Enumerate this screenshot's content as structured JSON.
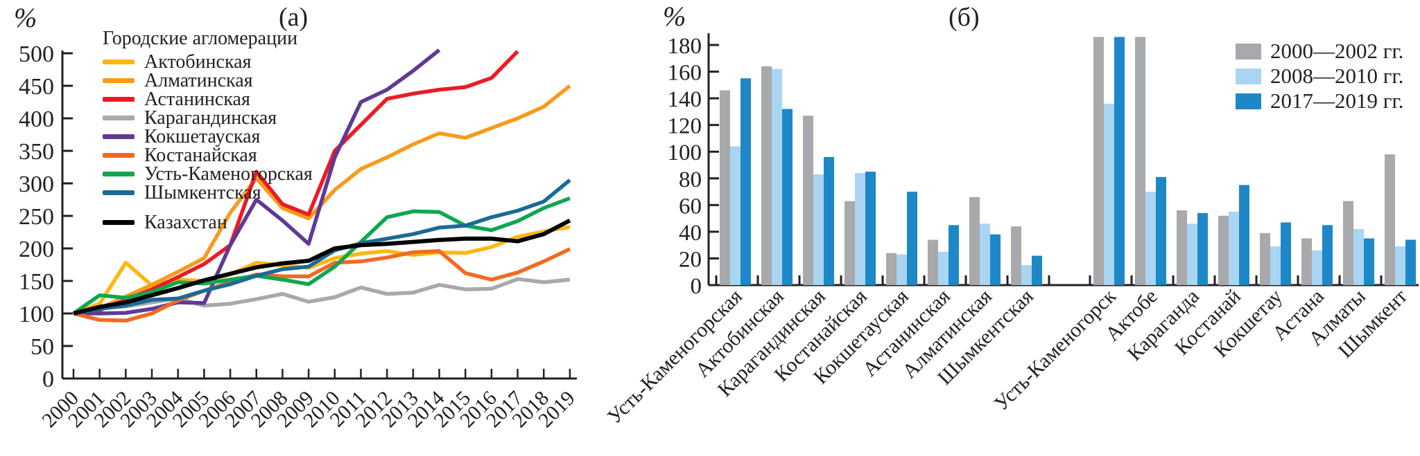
{
  "chart_data": [
    {
      "type": "line",
      "title": "(а)",
      "ylabel": "%",
      "legend_title": "Городские агломерации",
      "ylim": [
        0,
        500
      ],
      "ytick_step": 50,
      "grid": false,
      "legend_position": "top-left-inside",
      "x": [
        2000,
        2001,
        2002,
        2003,
        2004,
        2005,
        2006,
        2007,
        2008,
        2009,
        2010,
        2011,
        2012,
        2013,
        2014,
        2015,
        2016,
        2017,
        2018,
        2019
      ],
      "series": [
        {
          "key": "aktobinskaya",
          "name": "Актобинская",
          "color": "#FDB714",
          "values": [
            100,
            115,
            178,
            143,
            152,
            150,
            160,
            178,
            174,
            170,
            185,
            192,
            196,
            190,
            194,
            193,
            202,
            218,
            226,
            233
          ]
        },
        {
          "key": "almatinskaya",
          "name": "Алматинская",
          "color": "#F89B1B",
          "values": [
            100,
            108,
            126,
            144,
            164,
            185,
            255,
            308,
            262,
            246,
            290,
            322,
            340,
            360,
            377,
            370,
            385,
            400,
            418,
            450
          ]
        },
        {
          "key": "astaninskaya",
          "name": "Астанинская",
          "color": "#EC1B23",
          "values": [
            100,
            105,
            121,
            137,
            156,
            176,
            205,
            318,
            268,
            252,
            350,
            390,
            430,
            438,
            444,
            448,
            462,
            503,
            null,
            null
          ]
        },
        {
          "key": "karagandinskaya",
          "name": "Карагандинская",
          "color": "#A7A9AC",
          "values": [
            100,
            108,
            111,
            117,
            123,
            112,
            115,
            122,
            130,
            118,
            125,
            140,
            130,
            132,
            144,
            137,
            138,
            153,
            148,
            152
          ]
        },
        {
          "key": "kokshetauskaya",
          "name": "Кокшетауская",
          "color": "#5F3A95",
          "values": [
            100,
            100,
            101,
            107,
            117,
            116,
            205,
            275,
            243,
            207,
            340,
            425,
            444,
            473,
            505,
            null,
            null,
            null,
            null,
            null
          ]
        },
        {
          "key": "kostanayskaya",
          "name": "Костанайская",
          "color": "#F16A22",
          "values": [
            100,
            90,
            89,
            100,
            120,
            135,
            148,
            160,
            157,
            157,
            178,
            180,
            186,
            194,
            196,
            162,
            152,
            163,
            180,
            199
          ]
        },
        {
          "key": "ust-kamenogorskaya",
          "name": "Усть-Каменогорская",
          "color": "#10A651",
          "values": [
            100,
            128,
            124,
            133,
            148,
            146,
            152,
            158,
            152,
            145,
            172,
            210,
            248,
            257,
            256,
            235,
            228,
            242,
            262,
            277
          ]
        },
        {
          "key": "shymkentskaya",
          "name": "Шымкентская",
          "color": "#1A6A96",
          "values": [
            100,
            107,
            112,
            121,
            123,
            135,
            145,
            158,
            168,
            172,
            197,
            208,
            215,
            222,
            232,
            235,
            248,
            258,
            272,
            305
          ]
        },
        {
          "key": "kazakhstan",
          "name": "Казахстан",
          "color": "#000000",
          "values": [
            100,
            110,
            117,
            128,
            139,
            151,
            161,
            171,
            177,
            181,
            200,
            205,
            207,
            210,
            213,
            215,
            215,
            211,
            222,
            243
          ]
        }
      ]
    },
    {
      "type": "bar",
      "title": "(б)",
      "ylabel": "%",
      "ylim": [
        0,
        180
      ],
      "ytick_step": 20,
      "grid": false,
      "legend_position": "top-right-inside",
      "legend": [
        {
          "key": "period-2000-2002",
          "label": "2000—2002 гг.",
          "color": "#A7A9AC"
        },
        {
          "key": "period-2008-2010",
          "label": "2008—2010 гг.",
          "color": "#A9D5F2"
        },
        {
          "key": "period-2017-2019",
          "label": "2017—2019 гг.",
          "color": "#1E87C7"
        }
      ],
      "groups": [
        {
          "key": "ust-kamenogorskaya-aggl",
          "label": "Усть-Каменогорская",
          "section": 1,
          "values": [
            146,
            104,
            155
          ]
        },
        {
          "key": "aktobinskaya-aggl",
          "label": "Актобинская",
          "section": 1,
          "values": [
            164,
            162,
            132
          ]
        },
        {
          "key": "karagandinskaya-aggl",
          "label": "Карагандинская",
          "section": 1,
          "values": [
            127,
            83,
            96
          ]
        },
        {
          "key": "kostanayskaya-aggl",
          "label": "Костанайская",
          "section": 1,
          "values": [
            63,
            84,
            85
          ]
        },
        {
          "key": "kokshetauskaya-aggl",
          "label": "Кокшетауская",
          "section": 1,
          "values": [
            24,
            23,
            70
          ]
        },
        {
          "key": "astaninskaya-aggl",
          "label": "Астанинская",
          "section": 1,
          "values": [
            34,
            25,
            45
          ]
        },
        {
          "key": "almatinskaya-aggl",
          "label": "Алматинская",
          "section": 1,
          "values": [
            66,
            46,
            38
          ]
        },
        {
          "key": "shymkentskaya-aggl",
          "label": "Шымкентская",
          "section": 1,
          "values": [
            44,
            15,
            22
          ]
        },
        {
          "key": "ust-kamenogorsk-city",
          "label": "Усть-Каменогорск",
          "section": 2,
          "values": [
            186,
            136,
            186
          ]
        },
        {
          "key": "aktobe-city",
          "label": "Актобе",
          "section": 2,
          "values": [
            186,
            70,
            81
          ]
        },
        {
          "key": "karaganda-city",
          "label": "Караганда",
          "section": 2,
          "values": [
            56,
            46,
            54
          ]
        },
        {
          "key": "kostanay-city",
          "label": "Костанай",
          "section": 2,
          "values": [
            52,
            55,
            75
          ]
        },
        {
          "key": "kokshetau-city",
          "label": "Кокшетау",
          "section": 2,
          "values": [
            39,
            29,
            47
          ]
        },
        {
          "key": "astana-city",
          "label": "Астана",
          "section": 2,
          "values": [
            35,
            26,
            45
          ]
        },
        {
          "key": "almaty-city",
          "label": "Алматы",
          "section": 2,
          "values": [
            63,
            42,
            35
          ]
        },
        {
          "key": "shymkent-city",
          "label": "Шымкент",
          "section": 2,
          "values": [
            98,
            29,
            34
          ]
        }
      ]
    }
  ]
}
